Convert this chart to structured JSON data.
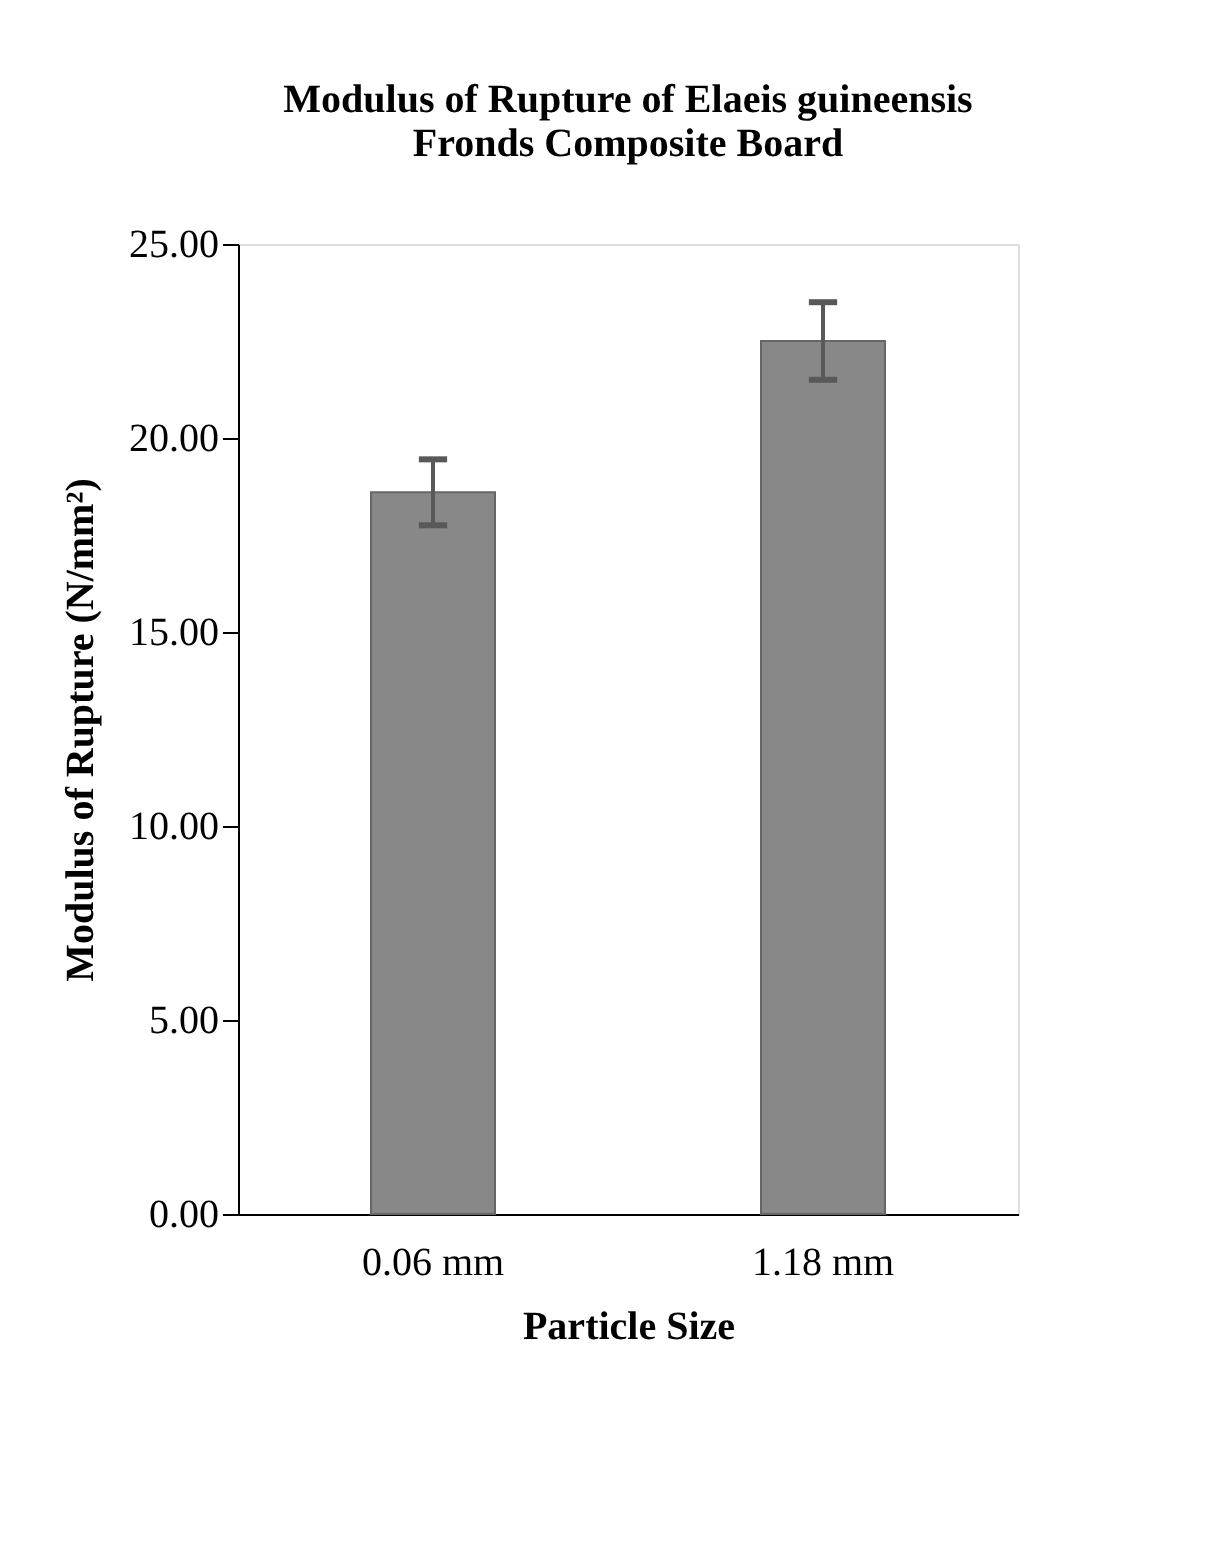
{
  "chart_data": {
    "type": "bar",
    "title": [
      "Modulus of Rupture of Elaeis guineensis",
      "Fronds Composite Board"
    ],
    "xlabel": "Particle Size",
    "ylabel": "Modulus of Rupture (N/mm²)",
    "categories": [
      "0.06 mm",
      "1.18 mm"
    ],
    "values": [
      18.6,
      22.5
    ],
    "errors": [
      0.85,
      1.0
    ],
    "color": "#888888",
    "ylim": [
      0,
      25
    ],
    "yticks": [
      {
        "value": 0,
        "label": "0.00"
      },
      {
        "value": 5,
        "label": "5.00"
      },
      {
        "value": 10,
        "label": "10.00"
      },
      {
        "value": 15,
        "label": "15.00"
      },
      {
        "value": 20,
        "label": "20.00"
      },
      {
        "value": 25,
        "label": "25.00"
      }
    ],
    "grid": false
  }
}
